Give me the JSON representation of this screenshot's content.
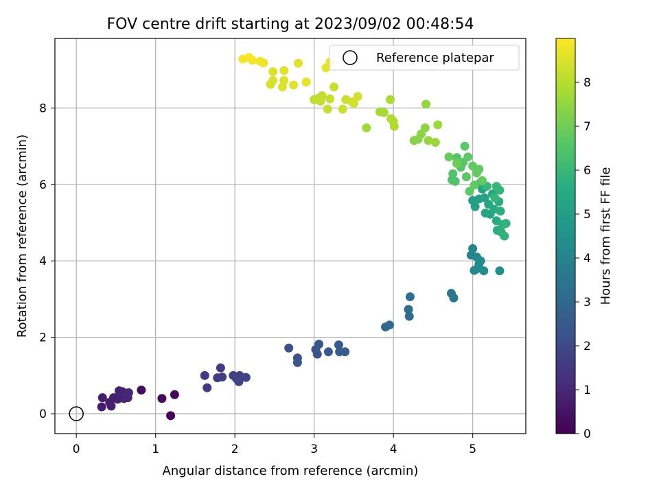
{
  "chart_data": {
    "type": "scatter",
    "title": "FOV centre drift starting at 2023/09/02 00:48:54",
    "xlabel": "Angular distance from reference (arcmin)",
    "ylabel": "Rotation from reference (arcmin)",
    "xlim": [
      -0.27,
      5.67
    ],
    "ylim": [
      -0.52,
      9.82
    ],
    "xticks": [
      0,
      1,
      2,
      3,
      4,
      5
    ],
    "yticks": [
      0,
      2,
      4,
      6,
      8
    ],
    "grid": true,
    "legend": {
      "position": "top-right",
      "entries": [
        "Reference platepar"
      ]
    },
    "reference_point": {
      "x": 0,
      "y": 0,
      "label": "Reference platepar"
    },
    "colorbar": {
      "label": "Hours from first FF file",
      "min": 0,
      "max": 9,
      "ticks": [
        0,
        1,
        2,
        3,
        4,
        5,
        6,
        7,
        8
      ],
      "colormap": "viridis"
    },
    "points": [
      {
        "x": 0.32,
        "y": 0.18,
        "h": 0.7
      },
      {
        "x": 0.33,
        "y": 0.42,
        "h": 0.72
      },
      {
        "x": 0.42,
        "y": 0.3,
        "h": 0.75
      },
      {
        "x": 0.44,
        "y": 0.2,
        "h": 0.78
      },
      {
        "x": 0.47,
        "y": 0.42,
        "h": 0.8
      },
      {
        "x": 0.52,
        "y": 0.38,
        "h": 0.82
      },
      {
        "x": 0.54,
        "y": 0.6,
        "h": 0.85
      },
      {
        "x": 0.56,
        "y": 0.5,
        "h": 0.88
      },
      {
        "x": 0.58,
        "y": 0.58,
        "h": 0.9
      },
      {
        "x": 0.6,
        "y": 0.4,
        "h": 0.92
      },
      {
        "x": 0.62,
        "y": 0.48,
        "h": 0.95
      },
      {
        "x": 0.65,
        "y": 0.42,
        "h": 0.97
      },
      {
        "x": 0.66,
        "y": 0.55,
        "h": 1.0
      },
      {
        "x": 0.82,
        "y": 0.62,
        "h": 0.3
      },
      {
        "x": 1.08,
        "y": 0.4,
        "h": 0.25
      },
      {
        "x": 1.24,
        "y": 0.5,
        "h": 0.2
      },
      {
        "x": 1.19,
        "y": -0.05,
        "h": 0.1
      },
      {
        "x": 1.62,
        "y": 1.0,
        "h": 1.45
      },
      {
        "x": 1.65,
        "y": 0.68,
        "h": 1.5
      },
      {
        "x": 1.78,
        "y": 0.94,
        "h": 1.6
      },
      {
        "x": 1.82,
        "y": 1.2,
        "h": 1.55
      },
      {
        "x": 1.84,
        "y": 0.96,
        "h": 1.65
      },
      {
        "x": 1.98,
        "y": 1.0,
        "h": 1.7
      },
      {
        "x": 2.02,
        "y": 0.92,
        "h": 1.75
      },
      {
        "x": 2.05,
        "y": 0.84,
        "h": 1.8
      },
      {
        "x": 2.06,
        "y": 1.0,
        "h": 1.72
      },
      {
        "x": 2.14,
        "y": 0.95,
        "h": 1.78
      },
      {
        "x": 2.68,
        "y": 1.72,
        "h": 2.2
      },
      {
        "x": 2.79,
        "y": 1.46,
        "h": 2.25
      },
      {
        "x": 2.79,
        "y": 1.34,
        "h": 2.3
      },
      {
        "x": 3.02,
        "y": 1.68,
        "h": 2.35
      },
      {
        "x": 3.04,
        "y": 1.56,
        "h": 2.4
      },
      {
        "x": 3.06,
        "y": 1.82,
        "h": 2.45
      },
      {
        "x": 3.18,
        "y": 1.62,
        "h": 2.5
      },
      {
        "x": 3.31,
        "y": 1.8,
        "h": 2.55
      },
      {
        "x": 3.32,
        "y": 1.62,
        "h": 2.6
      },
      {
        "x": 3.39,
        "y": 1.62,
        "h": 2.62
      },
      {
        "x": 3.9,
        "y": 2.27,
        "h": 3.0
      },
      {
        "x": 3.95,
        "y": 2.32,
        "h": 3.05
      },
      {
        "x": 4.19,
        "y": 2.73,
        "h": 3.15
      },
      {
        "x": 4.2,
        "y": 2.55,
        "h": 3.2
      },
      {
        "x": 4.21,
        "y": 3.06,
        "h": 3.25
      },
      {
        "x": 4.73,
        "y": 3.15,
        "h": 3.55
      },
      {
        "x": 4.76,
        "y": 3.03,
        "h": 3.6
      },
      {
        "x": 4.98,
        "y": 4.15,
        "h": 4.0
      },
      {
        "x": 5.0,
        "y": 4.32,
        "h": 4.05
      },
      {
        "x": 5.02,
        "y": 3.75,
        "h": 4.1
      },
      {
        "x": 5.05,
        "y": 4.1,
        "h": 4.15
      },
      {
        "x": 5.06,
        "y": 3.8,
        "h": 4.2
      },
      {
        "x": 5.08,
        "y": 3.92,
        "h": 4.25
      },
      {
        "x": 5.1,
        "y": 4.0,
        "h": 4.3
      },
      {
        "x": 5.14,
        "y": 3.74,
        "h": 4.35
      },
      {
        "x": 5.34,
        "y": 3.74,
        "h": 4.4
      },
      {
        "x": 5.0,
        "y": 5.58,
        "h": 5.0
      },
      {
        "x": 5.03,
        "y": 5.42,
        "h": 5.05
      },
      {
        "x": 5.08,
        "y": 5.62,
        "h": 5.1
      },
      {
        "x": 5.12,
        "y": 5.88,
        "h": 5.15
      },
      {
        "x": 5.15,
        "y": 5.65,
        "h": 5.2
      },
      {
        "x": 5.16,
        "y": 5.25,
        "h": 5.25
      },
      {
        "x": 5.2,
        "y": 5.48,
        "h": 5.3
      },
      {
        "x": 5.22,
        "y": 5.22,
        "h": 5.35
      },
      {
        "x": 5.25,
        "y": 5.75,
        "h": 5.4
      },
      {
        "x": 5.27,
        "y": 5.35,
        "h": 5.45
      },
      {
        "x": 5.3,
        "y": 5.05,
        "h": 5.5
      },
      {
        "x": 5.31,
        "y": 4.8,
        "h": 5.55
      },
      {
        "x": 5.33,
        "y": 5.55,
        "h": 5.6
      },
      {
        "x": 5.35,
        "y": 5.3,
        "h": 5.65
      },
      {
        "x": 5.36,
        "y": 4.75,
        "h": 5.7
      },
      {
        "x": 5.38,
        "y": 4.95,
        "h": 5.75
      },
      {
        "x": 5.4,
        "y": 4.65,
        "h": 5.8
      },
      {
        "x": 5.42,
        "y": 4.98,
        "h": 5.85
      },
      {
        "x": 5.34,
        "y": 5.85,
        "h": 5.9
      },
      {
        "x": 5.3,
        "y": 5.95,
        "h": 5.95
      },
      {
        "x": 5.28,
        "y": 5.65,
        "h": 5.92
      },
      {
        "x": 5.1,
        "y": 6.05,
        "h": 5.88
      },
      {
        "x": 5.18,
        "y": 5.95,
        "h": 5.98
      },
      {
        "x": 4.74,
        "y": 6.12,
        "h": 6.4
      },
      {
        "x": 4.75,
        "y": 6.28,
        "h": 6.45
      },
      {
        "x": 4.78,
        "y": 6.08,
        "h": 6.5
      },
      {
        "x": 4.8,
        "y": 6.7,
        "h": 6.55
      },
      {
        "x": 4.85,
        "y": 6.45,
        "h": 6.6
      },
      {
        "x": 4.88,
        "y": 6.58,
        "h": 6.62
      },
      {
        "x": 4.9,
        "y": 7.0,
        "h": 6.65
      },
      {
        "x": 4.92,
        "y": 6.2,
        "h": 6.68
      },
      {
        "x": 4.94,
        "y": 6.72,
        "h": 6.7
      },
      {
        "x": 4.96,
        "y": 5.82,
        "h": 6.72
      },
      {
        "x": 5.0,
        "y": 6.48,
        "h": 6.75
      },
      {
        "x": 5.02,
        "y": 5.98,
        "h": 6.78
      },
      {
        "x": 5.05,
        "y": 6.3,
        "h": 6.8
      },
      {
        "x": 5.08,
        "y": 6.4,
        "h": 6.82
      },
      {
        "x": 5.12,
        "y": 6.1,
        "h": 6.85
      },
      {
        "x": 4.7,
        "y": 6.72,
        "h": 6.88
      },
      {
        "x": 4.8,
        "y": 6.55,
        "h": 6.9
      },
      {
        "x": 4.26,
        "y": 7.15,
        "h": 7.3
      },
      {
        "x": 4.31,
        "y": 7.18,
        "h": 7.35
      },
      {
        "x": 4.35,
        "y": 7.32,
        "h": 7.4
      },
      {
        "x": 4.4,
        "y": 7.48,
        "h": 7.45
      },
      {
        "x": 4.41,
        "y": 8.1,
        "h": 7.5
      },
      {
        "x": 4.44,
        "y": 7.15,
        "h": 7.55
      },
      {
        "x": 4.53,
        "y": 7.1,
        "h": 7.6
      },
      {
        "x": 4.56,
        "y": 7.56,
        "h": 7.65
      },
      {
        "x": 3.66,
        "y": 7.48,
        "h": 7.7
      },
      {
        "x": 3.83,
        "y": 7.9,
        "h": 7.75
      },
      {
        "x": 3.88,
        "y": 7.88,
        "h": 7.8
      },
      {
        "x": 3.96,
        "y": 8.22,
        "h": 7.85
      },
      {
        "x": 3.97,
        "y": 7.72,
        "h": 7.88
      },
      {
        "x": 4.0,
        "y": 7.65,
        "h": 7.9
      },
      {
        "x": 4.01,
        "y": 7.52,
        "h": 7.92
      },
      {
        "x": 3.0,
        "y": 8.22,
        "h": 8.1
      },
      {
        "x": 3.05,
        "y": 8.25,
        "h": 8.12
      },
      {
        "x": 3.08,
        "y": 8.18,
        "h": 8.15
      },
      {
        "x": 3.1,
        "y": 8.32,
        "h": 8.18
      },
      {
        "x": 3.17,
        "y": 7.97,
        "h": 8.2
      },
      {
        "x": 3.2,
        "y": 8.24,
        "h": 8.22
      },
      {
        "x": 3.25,
        "y": 8.55,
        "h": 8.25
      },
      {
        "x": 3.36,
        "y": 7.97,
        "h": 8.28
      },
      {
        "x": 3.4,
        "y": 8.22,
        "h": 8.3
      },
      {
        "x": 3.48,
        "y": 8.16,
        "h": 8.32
      },
      {
        "x": 3.5,
        "y": 8.12,
        "h": 8.35
      },
      {
        "x": 3.55,
        "y": 8.3,
        "h": 8.38
      },
      {
        "x": 2.45,
        "y": 8.62,
        "h": 8.45
      },
      {
        "x": 2.48,
        "y": 8.72,
        "h": 8.48
      },
      {
        "x": 2.48,
        "y": 8.95,
        "h": 8.5
      },
      {
        "x": 2.6,
        "y": 8.55,
        "h": 8.52
      },
      {
        "x": 2.62,
        "y": 8.72,
        "h": 8.55
      },
      {
        "x": 2.62,
        "y": 8.98,
        "h": 8.58
      },
      {
        "x": 2.74,
        "y": 8.6,
        "h": 8.6
      },
      {
        "x": 2.8,
        "y": 9.17,
        "h": 8.62
      },
      {
        "x": 2.9,
        "y": 8.68,
        "h": 8.65
      },
      {
        "x": 3.15,
        "y": 9.05,
        "h": 8.68
      },
      {
        "x": 3.2,
        "y": 9.2,
        "h": 8.7
      },
      {
        "x": 2.1,
        "y": 9.28,
        "h": 8.85
      },
      {
        "x": 2.18,
        "y": 9.32,
        "h": 8.9
      },
      {
        "x": 2.22,
        "y": 9.25,
        "h": 8.88
      },
      {
        "x": 2.32,
        "y": 9.22,
        "h": 8.82
      },
      {
        "x": 2.36,
        "y": 9.18,
        "h": 8.8
      }
    ]
  }
}
